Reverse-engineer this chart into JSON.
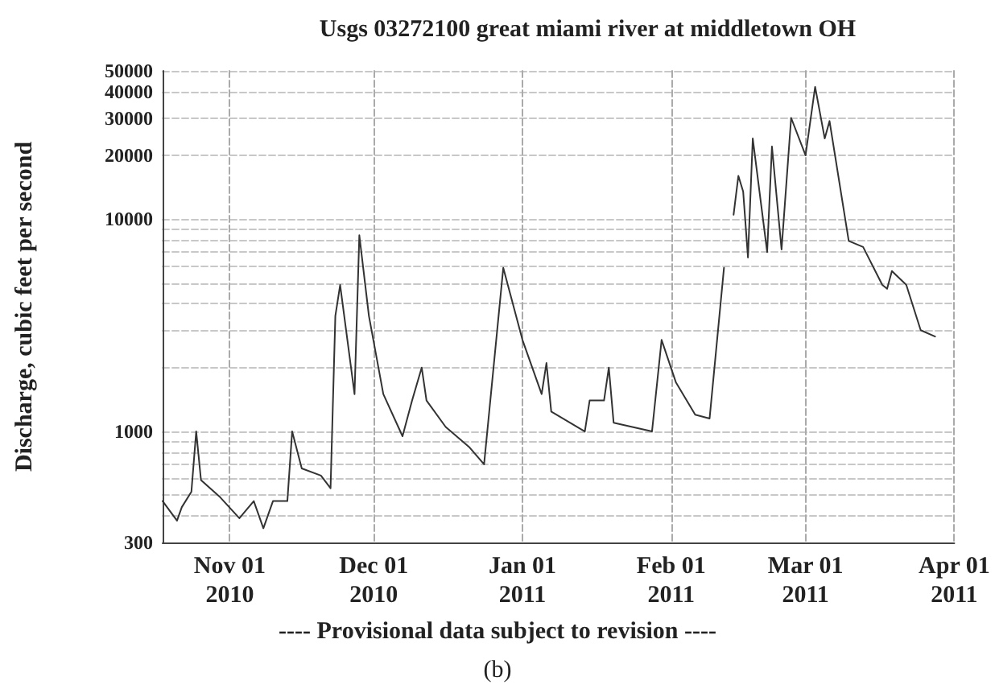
{
  "chart_data": {
    "type": "line",
    "title": "Usgs 03272100 great miami river at middletown OH",
    "ylabel": "Discharge, cubic feet per second",
    "annotations": [
      "---- Provisional data subject to revision ----",
      "(b)"
    ],
    "x": [
      "2010-10-18",
      "2010-10-21",
      "2010-10-22",
      "2010-10-24",
      "2010-10-25",
      "2010-10-26",
      "2010-10-30",
      "2010-11-03",
      "2010-11-06",
      "2010-11-08",
      "2010-11-10",
      "2010-11-13",
      "2010-11-14",
      "2010-11-16",
      "2010-11-20",
      "2010-11-22",
      "2010-11-23",
      "2010-11-24",
      "2010-11-27",
      "2010-11-28",
      "2010-11-30",
      "2010-12-03",
      "2010-12-07",
      "2010-12-09",
      "2010-12-11",
      "2010-12-12",
      "2010-12-16",
      "2010-12-21",
      "2010-12-24",
      "2010-12-28",
      "2011-01-01",
      "2011-01-05",
      "2011-01-06",
      "2011-01-07",
      "2011-01-14",
      "2011-01-15",
      "2011-01-18",
      "2011-01-19",
      "2011-01-20",
      "2011-01-28",
      "2011-01-30",
      "2011-02-02",
      "2011-02-06",
      "2011-02-09",
      "2011-02-12",
      "2011-02-13",
      "2011-02-14",
      "2011-02-15",
      "2011-02-16",
      "2011-02-17",
      "2011-02-18",
      "2011-02-21",
      "2011-02-22",
      "2011-02-24",
      "2011-02-26",
      "2011-03-01",
      "2011-03-03",
      "2011-03-05",
      "2011-03-06",
      "2011-03-10",
      "2011-03-13",
      "2011-03-17",
      "2011-03-18",
      "2011-03-19",
      "2011-03-22",
      "2011-03-25",
      "2011-03-28"
    ],
    "series": [
      {
        "color": "#333333",
        "values": [
          470,
          380,
          440,
          520,
          1000,
          590,
          490,
          390,
          470,
          350,
          470,
          470,
          1000,
          670,
          620,
          540,
          3500,
          4900,
          1500,
          8400,
          3500,
          1500,
          950,
          1400,
          2000,
          1400,
          1050,
          840,
          700,
          5900,
          2700,
          1500,
          2100,
          1240,
          1000,
          1400,
          1400,
          2000,
          1100,
          1000,
          2700,
          1700,
          1200,
          1150,
          5900,
          null,
          10500,
          16000,
          13500,
          6600,
          24000,
          7000,
          22000,
          7200,
          30000,
          20000,
          42000,
          24000,
          29000,
          7900,
          7400,
          4900,
          4700,
          5700,
          4900,
          3000,
          2800
        ]
      }
    ],
    "xlim": [
      "2010-10-18",
      "2011-04-01"
    ],
    "xticks": [
      {
        "value": "2010-11-01",
        "label": "Nov 01\n2010"
      },
      {
        "value": "2010-12-01",
        "label": "Dec 01\n2010"
      },
      {
        "value": "2011-01-01",
        "label": "Jan 01\n2011"
      },
      {
        "value": "2011-02-01",
        "label": "Feb 01\n2011"
      },
      {
        "value": "2011-03-01",
        "label": "Mar 01\n2011"
      },
      {
        "value": "2011-04-01",
        "label": "Apr 01\n2011"
      }
    ],
    "ylim": [
      300,
      50000
    ],
    "log": true,
    "yticks": [
      300,
      {
        "value": 400,
        "label": null
      },
      {
        "value": 500,
        "label": null
      },
      {
        "value": 600,
        "label": null
      },
      {
        "value": 700,
        "label": null
      },
      {
        "value": 800,
        "label": null
      },
      {
        "value": 900,
        "label": null
      },
      1000,
      {
        "value": 2000,
        "label": null
      },
      {
        "value": 3000,
        "label": null
      },
      {
        "value": 4000,
        "label": null
      },
      {
        "value": 5000,
        "label": null
      },
      {
        "value": 6000,
        "label": null
      },
      {
        "value": 7000,
        "label": null
      },
      {
        "value": 8000,
        "label": null
      },
      {
        "value": 9000,
        "label": null
      },
      10000,
      20000,
      30000,
      40000,
      50000
    ],
    "grid": true,
    "line_style": "solid",
    "marker": "none"
  }
}
